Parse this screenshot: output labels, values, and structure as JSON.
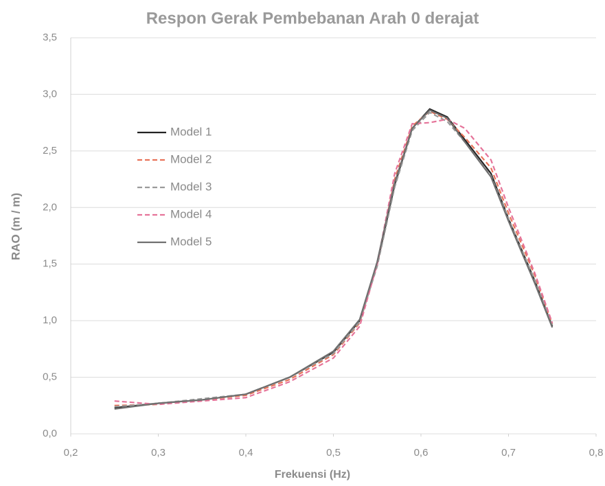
{
  "chart_data": {
    "type": "line",
    "title": "Respon Gerak Pembebanan Arah 0 derajat",
    "x_label": "Frekuensi (Hz)",
    "y_label": "RAO (m / m)",
    "x": [
      0.25,
      0.3,
      0.35,
      0.4,
      0.45,
      0.5,
      0.53,
      0.55,
      0.57,
      0.59,
      0.61,
      0.63,
      0.65,
      0.68,
      0.7,
      0.73,
      0.75
    ],
    "series": [
      {
        "name": "Model 1",
        "color": "#222222",
        "style": "solid",
        "values": [
          0.23,
          0.27,
          0.3,
          0.35,
          0.5,
          0.72,
          1.0,
          1.5,
          2.2,
          2.7,
          2.87,
          2.8,
          2.6,
          2.3,
          1.9,
          1.35,
          0.95
        ]
      },
      {
        "name": "Model 2",
        "color": "#e8735a",
        "style": "dashed",
        "values": [
          0.25,
          0.26,
          0.3,
          0.34,
          0.48,
          0.7,
          0.98,
          1.5,
          2.25,
          2.72,
          2.85,
          2.78,
          2.62,
          2.35,
          1.95,
          1.4,
          0.97
        ]
      },
      {
        "name": "Model 3",
        "color": "#9a9a9a",
        "style": "dashed",
        "values": [
          0.24,
          0.27,
          0.31,
          0.35,
          0.5,
          0.71,
          0.99,
          1.48,
          2.18,
          2.68,
          2.84,
          2.76,
          2.58,
          2.28,
          1.9,
          1.36,
          0.96
        ]
      },
      {
        "name": "Model 4",
        "color": "#e57399",
        "style": "dashed",
        "values": [
          0.29,
          0.26,
          0.29,
          0.32,
          0.46,
          0.67,
          0.95,
          1.5,
          2.3,
          2.74,
          2.75,
          2.78,
          2.7,
          2.42,
          2.0,
          1.42,
          0.98
        ]
      },
      {
        "name": "Model 5",
        "color": "#6f6f6f",
        "style": "solid",
        "values": [
          0.22,
          0.27,
          0.3,
          0.35,
          0.5,
          0.73,
          1.01,
          1.52,
          2.22,
          2.7,
          2.86,
          2.79,
          2.58,
          2.27,
          1.88,
          1.33,
          0.94
        ]
      }
    ],
    "xlim": [
      0.2,
      0.8
    ],
    "ylim": [
      0,
      3.5
    ],
    "xticks": [
      {
        "value": 0.2,
        "label": "0,2"
      },
      {
        "value": 0.3,
        "label": "0,3"
      },
      {
        "value": 0.4,
        "label": "0,4"
      },
      {
        "value": 0.5,
        "label": "0,5"
      },
      {
        "value": 0.6,
        "label": "0,6"
      },
      {
        "value": 0.7,
        "label": "0,7"
      },
      {
        "value": 0.8,
        "label": "0,8"
      }
    ],
    "yticks": [
      {
        "value": 0,
        "label": "0,0"
      },
      {
        "value": 0.5,
        "label": "0,5"
      },
      {
        "value": 1,
        "label": "1,0"
      },
      {
        "value": 1.5,
        "label": "1,5"
      },
      {
        "value": 2,
        "label": "2,0"
      },
      {
        "value": 2.5,
        "label": "2,5"
      },
      {
        "value": 3,
        "label": "3,0"
      },
      {
        "value": 3.5,
        "label": "3,5"
      }
    ],
    "grid": true
  }
}
